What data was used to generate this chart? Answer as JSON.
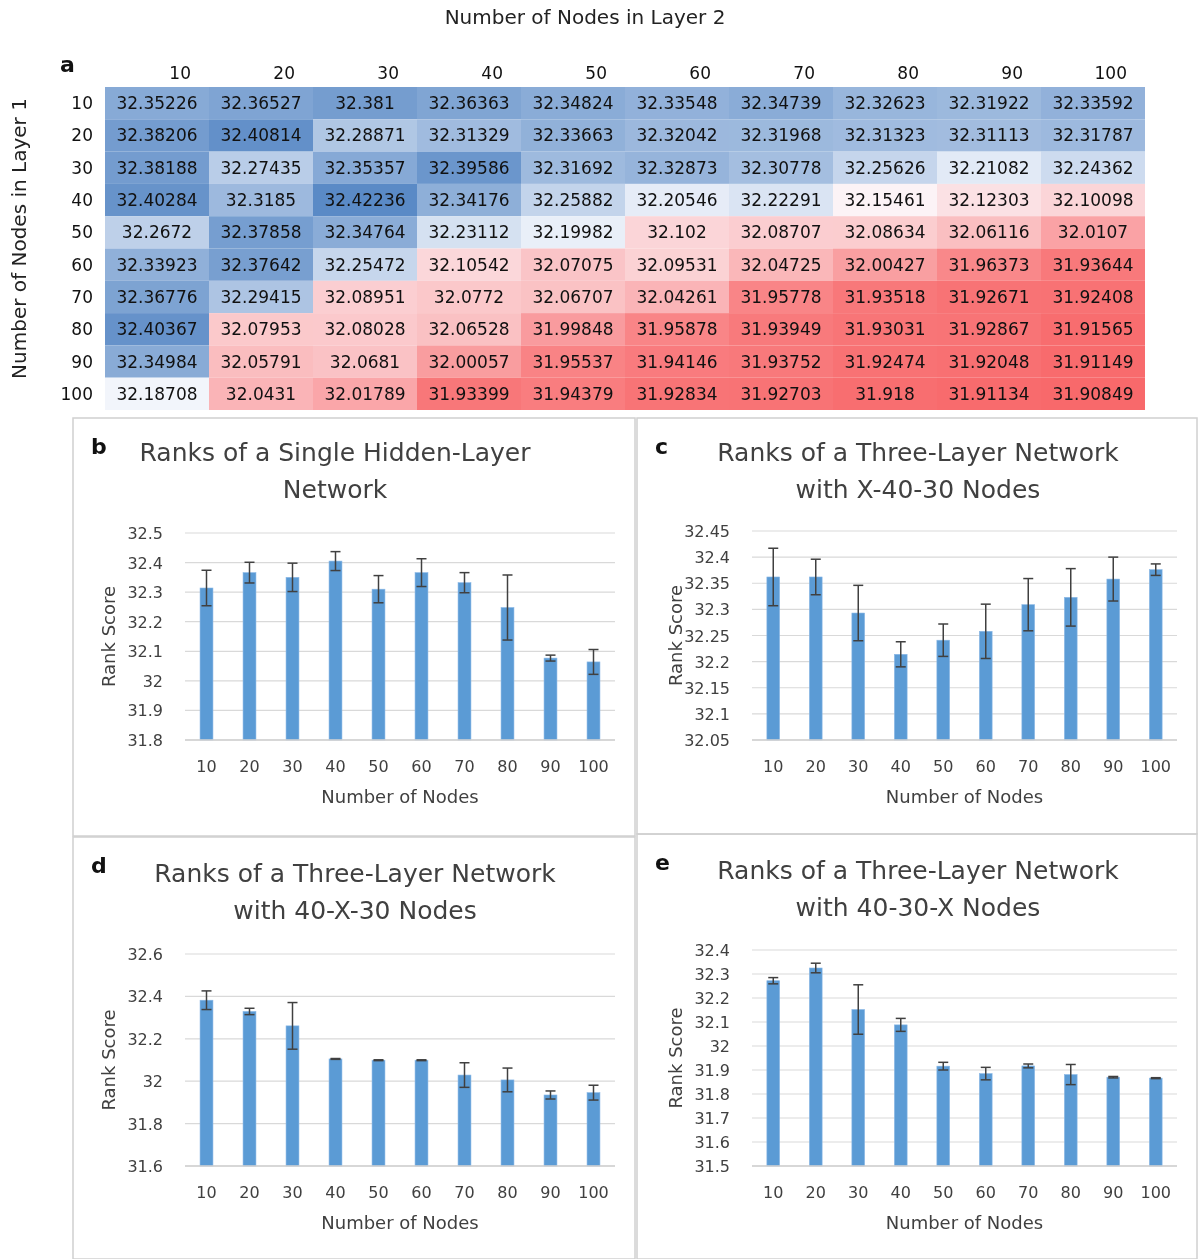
{
  "chart_data": [
    {
      "type": "heatmap",
      "xlabel": "Number of Nodes in Layer 2",
      "ylabel": "Number of Nodes in Layer 1",
      "annotations": [
        "a"
      ],
      "data_labels": true,
      "categories": [
        "10",
        "20",
        "30",
        "40",
        "50",
        "60",
        "70",
        "80",
        "90",
        "100"
      ],
      "y_categories": [
        "10",
        "20",
        "30",
        "40",
        "50",
        "60",
        "70",
        "80",
        "90",
        "100"
      ],
      "cells": [
        [
          32.35226,
          32.36527,
          32.381,
          32.36363,
          32.34824,
          32.33548,
          32.34739,
          32.32623,
          32.31922,
          32.33592
        ],
        [
          32.38206,
          32.40814,
          32.28871,
          32.31329,
          32.33663,
          32.32042,
          32.31968,
          32.31323,
          32.31113,
          32.31787
        ],
        [
          32.38188,
          32.27435,
          32.35357,
          32.39586,
          32.31692,
          32.32873,
          32.30778,
          32.25626,
          32.21082,
          32.24362
        ],
        [
          32.40284,
          32.3185,
          32.42236,
          32.34176,
          32.25882,
          32.20546,
          32.22291,
          32.15461,
          32.12303,
          32.10098
        ],
        [
          32.2672,
          32.37858,
          32.34764,
          32.23112,
          32.19982,
          32.102,
          32.08707,
          32.08634,
          32.06116,
          32.0107
        ],
        [
          32.33923,
          32.37642,
          32.25472,
          32.10542,
          32.07075,
          32.09531,
          32.04725,
          32.00427,
          31.96373,
          31.93644
        ],
        [
          32.36776,
          32.29415,
          32.08951,
          32.0772,
          32.06707,
          32.04261,
          31.95778,
          31.93518,
          31.92671,
          31.92408
        ],
        [
          32.40367,
          32.07953,
          32.08028,
          32.06528,
          31.99848,
          31.95878,
          31.93949,
          31.93031,
          31.92867,
          31.91565
        ],
        [
          32.34984,
          32.05791,
          32.0681,
          32.00057,
          31.95537,
          31.94146,
          31.93752,
          31.92474,
          31.92048,
          31.91149
        ],
        [
          32.18708,
          32.0431,
          32.01789,
          31.93399,
          31.94379,
          31.92834,
          31.92703,
          31.918,
          31.91134,
          31.90849
        ]
      ]
    },
    {
      "type": "bar",
      "title": "Ranks of a Single Hidden-Layer Network",
      "xlabel": "Number of Nodes",
      "ylabel": "Rank Score",
      "annotations": [
        "b"
      ],
      "color": "#5b9bd5",
      "grid": "y",
      "categories": [
        "10",
        "20",
        "30",
        "40",
        "50",
        "60",
        "70",
        "80",
        "90",
        "100"
      ],
      "values": [
        32.314,
        32.366,
        32.35,
        32.405,
        32.31,
        32.366,
        32.332,
        32.248,
        32.077,
        32.064
      ],
      "errors": [
        0.06,
        0.035,
        0.048,
        0.032,
        0.046,
        0.047,
        0.034,
        0.11,
        0.01,
        0.042
      ],
      "ylim": [
        31.8,
        32.5
      ],
      "yticks": [
        31.8,
        31.9,
        32,
        32.1,
        32.2,
        32.3,
        32.4,
        32.5
      ]
    },
    {
      "type": "bar",
      "title": "Ranks of a Three-Layer Network with X-40-30 Nodes",
      "xlabel": "Number of Nodes",
      "ylabel": "Rank Score",
      "annotations": [
        "c"
      ],
      "color": "#5b9bd5",
      "grid": "y",
      "categories": [
        "10",
        "20",
        "30",
        "40",
        "50",
        "60",
        "70",
        "80",
        "90",
        "100"
      ],
      "values": [
        32.362,
        32.362,
        32.293,
        32.214,
        32.241,
        32.258,
        32.309,
        32.323,
        32.358,
        32.376
      ],
      "errors": [
        0.055,
        0.034,
        0.053,
        0.024,
        0.031,
        0.052,
        0.05,
        0.055,
        0.042,
        0.011
      ],
      "ylim": [
        32.05,
        32.45
      ],
      "yticks": [
        32.05,
        32.1,
        32.15,
        32.2,
        32.25,
        32.3,
        32.35,
        32.4,
        32.45
      ]
    },
    {
      "type": "bar",
      "title": "Ranks of a Three-Layer Network with 40-X-30 Nodes",
      "xlabel": "Number of Nodes",
      "ylabel": "Rank Score",
      "annotations": [
        "d"
      ],
      "color": "#5b9bd5",
      "grid": "y",
      "categories": [
        "10",
        "20",
        "30",
        "40",
        "50",
        "60",
        "70",
        "80",
        "90",
        "100"
      ],
      "values": [
        32.382,
        32.329,
        32.261,
        32.105,
        32.099,
        32.099,
        32.029,
        32.006,
        31.935,
        31.946
      ],
      "errors": [
        0.044,
        0.015,
        0.11,
        0.002,
        0.002,
        0.002,
        0.058,
        0.056,
        0.019,
        0.035
      ],
      "ylim": [
        31.6,
        32.6
      ],
      "yticks": [
        31.6,
        31.8,
        32,
        32.2,
        32.4,
        32.6
      ]
    },
    {
      "type": "bar",
      "title": "Ranks of a Three-Layer Network with 40-30-X Nodes",
      "xlabel": "Number of Nodes",
      "ylabel": "Rank Score",
      "annotations": [
        "e"
      ],
      "color": "#5b9bd5",
      "grid": "y",
      "categories": [
        "10",
        "20",
        "30",
        "40",
        "50",
        "60",
        "70",
        "80",
        "90",
        "100"
      ],
      "values": [
        32.272,
        32.325,
        32.152,
        32.088,
        31.916,
        31.885,
        31.917,
        31.881,
        31.87,
        31.866
      ],
      "errors": [
        0.013,
        0.02,
        0.103,
        0.027,
        0.016,
        0.026,
        0.008,
        0.042,
        0.003,
        0.002
      ],
      "ylim": [
        31.5,
        32.4
      ],
      "yticks": [
        31.5,
        31.6,
        31.7,
        31.8,
        31.9,
        32,
        32.1,
        32.2,
        32.3,
        32.4
      ]
    }
  ]
}
